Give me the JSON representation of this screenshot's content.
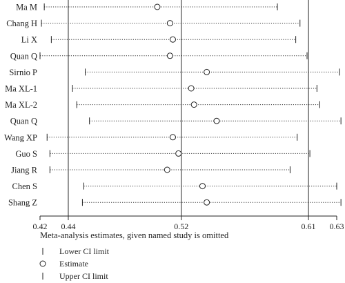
{
  "chart_data": {
    "type": "forest",
    "xlabel": "Meta-analysis estimates, given named study is omitted",
    "xticks": [
      0.42,
      0.44,
      0.52,
      0.61,
      0.63
    ],
    "xtick_labels": [
      "0.42",
      "0.44",
      "0.52",
      "0.61",
      "0.63"
    ],
    "xlim": [
      0.42,
      0.63
    ],
    "reference_lines": [
      0.44,
      0.52,
      0.61
    ],
    "studies": [
      {
        "name": "Ma M",
        "lower": 0.423,
        "estimate": 0.503,
        "upper": 0.588
      },
      {
        "name": "Chang H",
        "lower": 0.421,
        "estimate": 0.512,
        "upper": 0.604
      },
      {
        "name": "Li X",
        "lower": 0.428,
        "estimate": 0.514,
        "upper": 0.601
      },
      {
        "name": "Quan Q",
        "lower": 0.42,
        "estimate": 0.512,
        "upper": 0.609
      },
      {
        "name": "Sirnio P",
        "lower": 0.452,
        "estimate": 0.538,
        "upper": 0.632
      },
      {
        "name": "Ma XL-1",
        "lower": 0.443,
        "estimate": 0.527,
        "upper": 0.616
      },
      {
        "name": "Ma XL-2",
        "lower": 0.446,
        "estimate": 0.529,
        "upper": 0.618
      },
      {
        "name": "Quan Q",
        "lower": 0.455,
        "estimate": 0.545,
        "upper": 0.633
      },
      {
        "name": "Wang XP",
        "lower": 0.425,
        "estimate": 0.514,
        "upper": 0.602
      },
      {
        "name": "Guo S",
        "lower": 0.427,
        "estimate": 0.518,
        "upper": 0.611
      },
      {
        "name": "Jiang R",
        "lower": 0.427,
        "estimate": 0.51,
        "upper": 0.597
      },
      {
        "name": "Chen S",
        "lower": 0.451,
        "estimate": 0.535,
        "upper": 0.63
      },
      {
        "name": "Shang Z",
        "lower": 0.45,
        "estimate": 0.538,
        "upper": 0.633
      }
    ],
    "legend": [
      {
        "symbol": "lower-ci-tick",
        "label": "Lower CI limit"
      },
      {
        "symbol": "estimate-circle",
        "label": "Estimate"
      },
      {
        "symbol": "upper-ci-tick",
        "label": "Upper CI limit"
      }
    ],
    "grid": false,
    "legend_placement": "bottom-left"
  }
}
